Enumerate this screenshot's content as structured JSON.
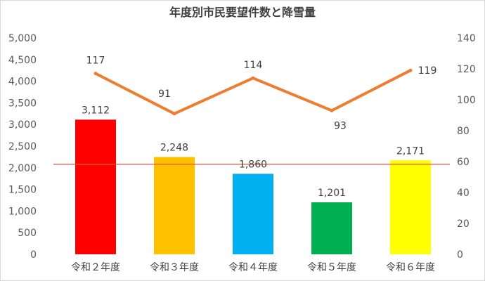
{
  "chart_data": {
    "type": "bar+line",
    "title": "年度別市民要望件数と降雪量",
    "categories": [
      "令和２年度",
      "令和３年度",
      "令和４年度",
      "令和５年度",
      "令和６年度"
    ],
    "series": [
      {
        "type": "bar",
        "axis": "left",
        "values": [
          3112,
          2248,
          1860,
          1201,
          2171
        ],
        "labels": [
          "3,112",
          "2,248",
          "1,860",
          "1,201",
          "2,171"
        ],
        "colors": [
          "#ff0000",
          "#ffc000",
          "#00b0f0",
          "#00b050",
          "#ffff00"
        ]
      },
      {
        "type": "line",
        "axis": "right",
        "values": [
          117,
          91,
          114,
          93,
          119
        ],
        "labels": [
          "117",
          "91",
          "114",
          "93",
          "119"
        ],
        "color": "#ed7d31"
      }
    ],
    "reference_line": {
      "axis": "left",
      "value": 2080,
      "color": "#e05a3a"
    },
    "left_axis": {
      "ylim": [
        0,
        5000
      ],
      "ticks": [
        "0",
        "500",
        "1,000",
        "1,500",
        "2,000",
        "2,500",
        "3,000",
        "3,500",
        "4,000",
        "4,500",
        "5,000"
      ]
    },
    "right_axis": {
      "ylim": [
        0,
        140
      ],
      "ticks": [
        "0",
        "20",
        "40",
        "60",
        "80",
        "100",
        "120",
        "140"
      ]
    },
    "grid": false,
    "legend": "none"
  }
}
